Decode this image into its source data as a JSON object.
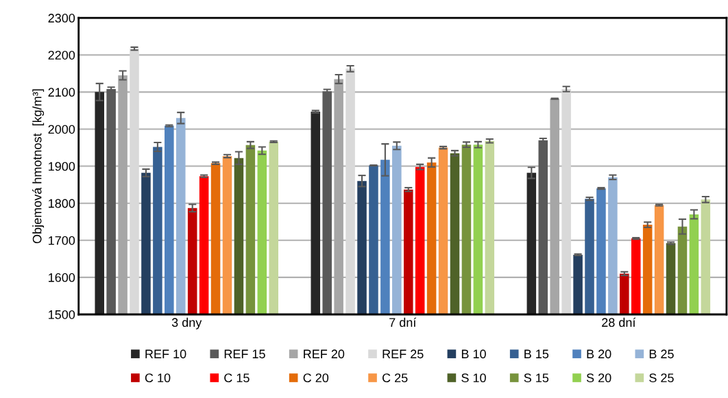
{
  "chart_data": {
    "type": "bar",
    "ylabel": "Objemová hmotnost  [kg/m³]",
    "categories": [
      "3 dny",
      "7 dní",
      "28 dní"
    ],
    "ylim": [
      1500,
      2300
    ],
    "yticks": [
      1500,
      1600,
      1700,
      1800,
      1900,
      2000,
      2100,
      2200,
      2300
    ],
    "grid": "y",
    "legend": "bottom",
    "series": [
      {
        "name": "REF 10",
        "color": "#262626",
        "values": [
          2100,
          2047,
          1882
        ],
        "errors": [
          23,
          3,
          15
        ]
      },
      {
        "name": "REF 15",
        "color": "#595959",
        "values": [
          2108,
          2102,
          1970
        ],
        "errors": [
          5,
          5,
          5
        ]
      },
      {
        "name": "REF 20",
        "color": "#a6a6a6",
        "values": [
          2145,
          2135,
          2082
        ],
        "errors": [
          12,
          12,
          1
        ]
      },
      {
        "name": "REF 25",
        "color": "#d9d9d9",
        "values": [
          2217,
          2163,
          2108
        ],
        "errors": [
          4,
          8,
          7
        ]
      },
      {
        "name": "B 10",
        "color": "#243f60",
        "values": [
          1882,
          1860,
          1661
        ],
        "errors": [
          10,
          15,
          2
        ]
      },
      {
        "name": "B 15",
        "color": "#366092",
        "values": [
          1952,
          1902,
          1812
        ],
        "errors": [
          12,
          1,
          4
        ]
      },
      {
        "name": "B 20",
        "color": "#4f81bd",
        "values": [
          2009,
          1917,
          1840
        ],
        "errors": [
          2,
          43,
          2
        ]
      },
      {
        "name": "B 25",
        "color": "#95b3d7",
        "values": [
          2030,
          1955,
          1870
        ],
        "errors": [
          15,
          10,
          6
        ]
      },
      {
        "name": "C 10",
        "color": "#c00000",
        "values": [
          1787,
          1837,
          1610
        ],
        "errors": [
          10,
          5,
          5
        ]
      },
      {
        "name": "C 15",
        "color": "#ff0000",
        "values": [
          1873,
          1898,
          1705
        ],
        "errors": [
          3,
          7,
          2
        ]
      },
      {
        "name": "C 20",
        "color": "#e46c0a",
        "values": [
          1908,
          1910,
          1742
        ],
        "errors": [
          3,
          12,
          7
        ]
      },
      {
        "name": "C 25",
        "color": "#f79646",
        "values": [
          1927,
          1950,
          1795
        ],
        "errors": [
          4,
          3,
          2
        ]
      },
      {
        "name": "S 10",
        "color": "#4f6228",
        "values": [
          1922,
          1935,
          1692
        ],
        "errors": [
          17,
          7,
          3
        ]
      },
      {
        "name": "S 15",
        "color": "#77933c",
        "values": [
          1957,
          1958,
          1737
        ],
        "errors": [
          9,
          7,
          20
        ]
      },
      {
        "name": "S 20",
        "color": "#92d050",
        "values": [
          1942,
          1958,
          1770
        ],
        "errors": [
          10,
          8,
          12
        ]
      },
      {
        "name": "S 25",
        "color": "#c4d79b",
        "values": [
          1966,
          1968,
          1810
        ],
        "errors": [
          2,
          5,
          8
        ]
      }
    ]
  }
}
